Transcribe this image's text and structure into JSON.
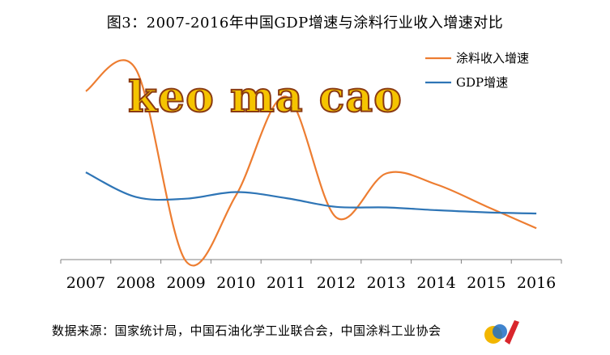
{
  "chart_data": {
    "type": "line",
    "title": "图3：2007-2016年中国GDP增速与涂料行业收入增速对比",
    "categories": [
      "2007",
      "2008",
      "2009",
      "2010",
      "2011",
      "2012",
      "2013",
      "2014",
      "2015",
      "2016"
    ],
    "series": [
      {
        "name": "涂料收入增速",
        "color": "#ED7D31",
        "values": [
          29,
          33,
          -2,
          10,
          28,
          6,
          14,
          12,
          8,
          4
        ]
      },
      {
        "name": "GDP增速",
        "color": "#2E75B6",
        "values": [
          14.2,
          9.7,
          9.4,
          10.6,
          9.5,
          7.9,
          7.8,
          7.3,
          6.9,
          6.7
        ]
      }
    ],
    "ylim": [
      -2,
      35
    ],
    "legend_position": "top-right",
    "grid": false
  },
  "source": "数据来源：国家统计局，中国石油化学工业联合会，中国涂料工业协会",
  "watermark": "keo ma cao"
}
